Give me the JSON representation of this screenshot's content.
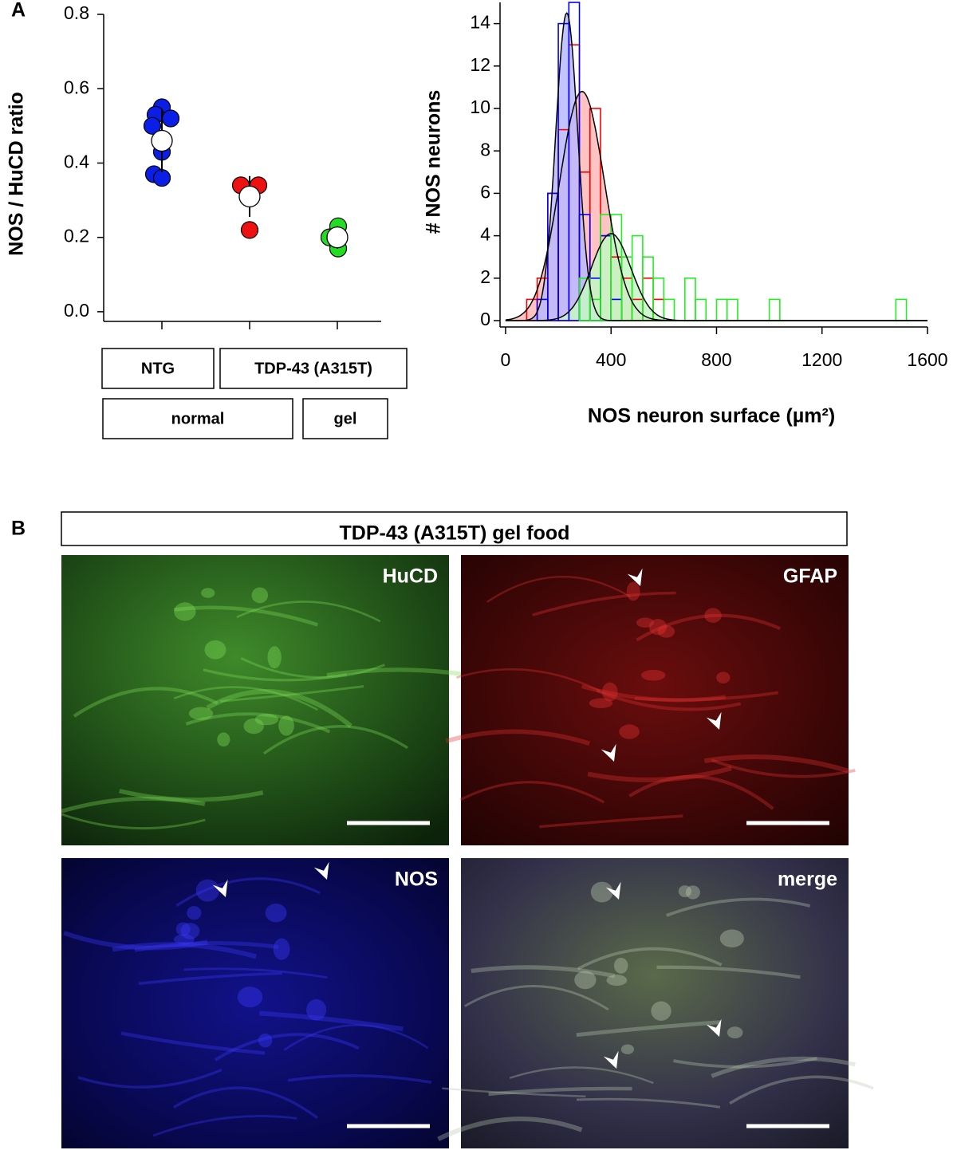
{
  "panel_labels": [
    "A",
    "B"
  ],
  "chart_data": [
    {
      "type": "dot",
      "ylabel": "NOS / HuCD ratio",
      "ylim": [
        -0.026,
        0.8
      ],
      "yticks": [
        {
          "value": 0,
          "label": "0.0"
        },
        {
          "value": 0.2,
          "label": "0.2"
        },
        {
          "value": 0.4,
          "label": "0.4"
        },
        {
          "value": 0.6,
          "label": "0.6"
        },
        {
          "value": 0.8,
          "label": "0.8"
        }
      ],
      "groups": [
        {
          "color": "#0a1ee6",
          "values": [
            0.55,
            0.53,
            0.52,
            0.5,
            0.43,
            0.37,
            0.36
          ],
          "mean": 0.46,
          "error": 0.085
        },
        {
          "color": "#ee1111",
          "values": [
            0.34,
            0.34,
            0.22
          ],
          "mean": 0.31,
          "error": 0.055
        },
        {
          "color": "#22dd22",
          "values": [
            0.23,
            0.2,
            0.17
          ],
          "mean": 0.2,
          "error": 0.03
        }
      ],
      "genotype_labels": [
        "NTG",
        "TDP-43 (A315T)"
      ],
      "diet_labels": [
        "normal",
        "gel"
      ]
    },
    {
      "type": "histogram",
      "xlabel": "NOS neuron surface (µm²)",
      "ylabel": "# NOS neurons",
      "xlim": [
        -21,
        1600
      ],
      "xticks": [
        0,
        400,
        800,
        1200,
        1600
      ],
      "ylim": [
        -0.3,
        15
      ],
      "yticks": [
        0,
        2,
        4,
        6,
        8,
        10,
        12,
        14
      ],
      "series": [
        {
          "color": "#ff0000",
          "fill": "#ffb8b8",
          "bins": [
            80,
            120,
            160,
            200,
            240,
            280,
            320,
            360,
            400,
            440,
            480,
            520,
            560,
            600
          ],
          "values": [
            1,
            2,
            6,
            9,
            13,
            7,
            10,
            4,
            3,
            2,
            1,
            2,
            1
          ]
        },
        {
          "color": "#0000ff",
          "fill": "#b8b8ff",
          "bins": [
            120,
            160,
            200,
            240,
            280,
            320,
            360,
            400,
            440,
            480
          ],
          "values": [
            1,
            6,
            14,
            15,
            5,
            2,
            4,
            1,
            0
          ]
        },
        {
          "color": "#22ee22",
          "fill": "#c4f7c4",
          "bins": [
            280,
            320,
            360,
            400,
            440,
            480,
            520,
            560,
            600,
            640,
            680,
            720,
            760,
            800,
            840,
            880,
            920,
            960,
            1000,
            1040,
            1080,
            1120,
            1160,
            1200,
            1240,
            1280,
            1320,
            1360,
            1400,
            1440,
            1480,
            1520
          ],
          "values": [
            2,
            1,
            5,
            5,
            3,
            4,
            3,
            2,
            1,
            0,
            2,
            1,
            0,
            1,
            1,
            0,
            0,
            0,
            1,
            0,
            0,
            0,
            0,
            0,
            0,
            0,
            0,
            0,
            0,
            0,
            1
          ]
        }
      ],
      "fits": [
        {
          "mean": 290,
          "sd": 85,
          "peak": 10.8,
          "series": 0
        },
        {
          "mean": 232,
          "sd": 42,
          "peak": 14.5,
          "series": 1
        },
        {
          "mean": 400,
          "sd": 75,
          "peak": 4.1,
          "series": 2
        }
      ]
    }
  ],
  "panel_b": {
    "title": "TDP-43 (A315T) gel food",
    "images": [
      {
        "label": "HuCD"
      },
      {
        "label": "GFAP"
      },
      {
        "label": "NOS"
      },
      {
        "label": "merge"
      }
    ]
  }
}
